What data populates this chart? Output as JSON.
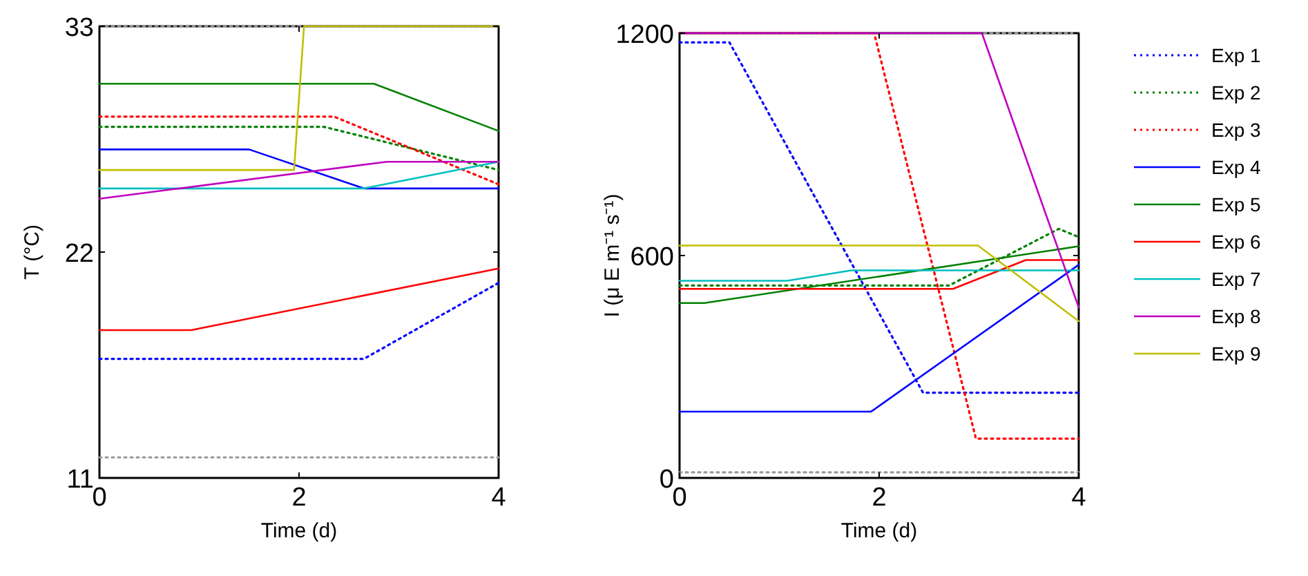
{
  "chart_data": [
    {
      "type": "line",
      "xlabel": "Time (d)",
      "ylabel": "T (°C)",
      "xlim": [
        0,
        4
      ],
      "xticks": [
        0,
        2,
        4
      ],
      "ylim": [
        11,
        33
      ],
      "yticks": [
        11,
        22,
        33
      ],
      "grid": false,
      "legend": false,
      "series": [
        {
          "color": "#999999",
          "line_style": "dotted",
          "x": [
            0,
            4
          ],
          "values": [
            33,
            33
          ]
        },
        {
          "color": "#999999",
          "line_style": "dotted",
          "x": [
            0,
            4
          ],
          "values": [
            12,
            12
          ]
        },
        {
          "color": "#0000ff",
          "line_style": "dotted",
          "x": [
            0,
            2.65,
            4
          ],
          "values": [
            16.8,
            16.8,
            20.5
          ]
        },
        {
          "color": "#008000",
          "line_style": "dotted",
          "x": [
            0,
            2.25,
            4
          ],
          "values": [
            28.1,
            28.1,
            26
          ]
        },
        {
          "color": "#ff0000",
          "line_style": "dotted",
          "x": [
            0,
            2.35,
            4
          ],
          "values": [
            28.6,
            28.6,
            25.3
          ]
        },
        {
          "color": "#0000ff",
          "line_style": "solid",
          "x": [
            0,
            1.5,
            2.65,
            4
          ],
          "values": [
            27,
            27,
            25.1,
            25.1
          ]
        },
        {
          "color": "#008000",
          "line_style": "solid",
          "x": [
            0,
            2.75,
            4
          ],
          "values": [
            30.2,
            30.2,
            27.9
          ]
        },
        {
          "color": "#ff0000",
          "line_style": "solid",
          "x": [
            0,
            0.92,
            4
          ],
          "values": [
            18.2,
            18.2,
            21.2
          ]
        },
        {
          "color": "#00bfbf",
          "line_style": "solid",
          "x": [
            0,
            2.65,
            4
          ],
          "values": [
            25.1,
            25.1,
            26.4
          ]
        },
        {
          "color": "#bf00bf",
          "line_style": "solid",
          "x": [
            0,
            2.88,
            4
          ],
          "values": [
            24.6,
            26.4,
            26.4
          ]
        },
        {
          "color": "#bfbf00",
          "line_style": "solid",
          "x": [
            0,
            1.95,
            2.05,
            4
          ],
          "values": [
            26,
            26,
            33,
            33
          ]
        }
      ]
    },
    {
      "type": "line",
      "xlabel": "Time (d)",
      "ylabel": "I (μ E m⁻¹ s⁻¹)",
      "xlim": [
        0,
        4
      ],
      "xticks": [
        0,
        2,
        4
      ],
      "ylim": [
        0,
        1200
      ],
      "yticks": [
        0,
        600,
        1200
      ],
      "grid": false,
      "legend": "right",
      "series": [
        {
          "color": "#999999",
          "line_style": "dotted",
          "x": [
            0,
            4
          ],
          "values": [
            1200,
            1200
          ]
        },
        {
          "color": "#999999",
          "line_style": "dotted",
          "x": [
            0,
            4
          ],
          "values": [
            15,
            15
          ]
        },
        {
          "name": "Exp 1",
          "color": "#0000ff",
          "line_style": "dotted",
          "x": [
            0,
            0.5,
            2.44,
            4
          ],
          "values": [
            1175,
            1175,
            230,
            230
          ]
        },
        {
          "name": "Exp 2",
          "color": "#008000",
          "line_style": "dotted",
          "x": [
            0,
            2.7,
            3.8,
            4
          ],
          "values": [
            519,
            519,
            672,
            650
          ]
        },
        {
          "name": "Exp 3",
          "color": "#ff0000",
          "line_style": "dotted",
          "x": [
            0,
            1.95,
            2.97,
            4
          ],
          "values": [
            1200,
            1200,
            106,
            106
          ]
        },
        {
          "name": "Exp 4",
          "color": "#0000ff",
          "line_style": "solid",
          "x": [
            0,
            1.92,
            4
          ],
          "values": [
            179,
            179,
            575
          ]
        },
        {
          "name": "Exp 5",
          "color": "#008000",
          "line_style": "solid",
          "x": [
            0,
            0.25,
            4
          ],
          "values": [
            472,
            472,
            625
          ]
        },
        {
          "name": "Exp 6",
          "color": "#ff0000",
          "line_style": "solid",
          "x": [
            0,
            2.74,
            3.47,
            4
          ],
          "values": [
            510,
            510,
            588,
            588
          ]
        },
        {
          "name": "Exp 7",
          "color": "#00bfbf",
          "line_style": "solid",
          "x": [
            0,
            1.08,
            1.72,
            4
          ],
          "values": [
            532,
            532,
            560,
            560
          ]
        },
        {
          "name": "Exp 8",
          "color": "#bf00bf",
          "line_style": "solid",
          "x": [
            0,
            3.03,
            4
          ],
          "values": [
            1200,
            1200,
            460
          ]
        },
        {
          "name": "Exp 9",
          "color": "#bfbf00",
          "line_style": "solid",
          "x": [
            0,
            2.99,
            4
          ],
          "values": [
            627,
            627,
            423
          ]
        }
      ]
    }
  ]
}
